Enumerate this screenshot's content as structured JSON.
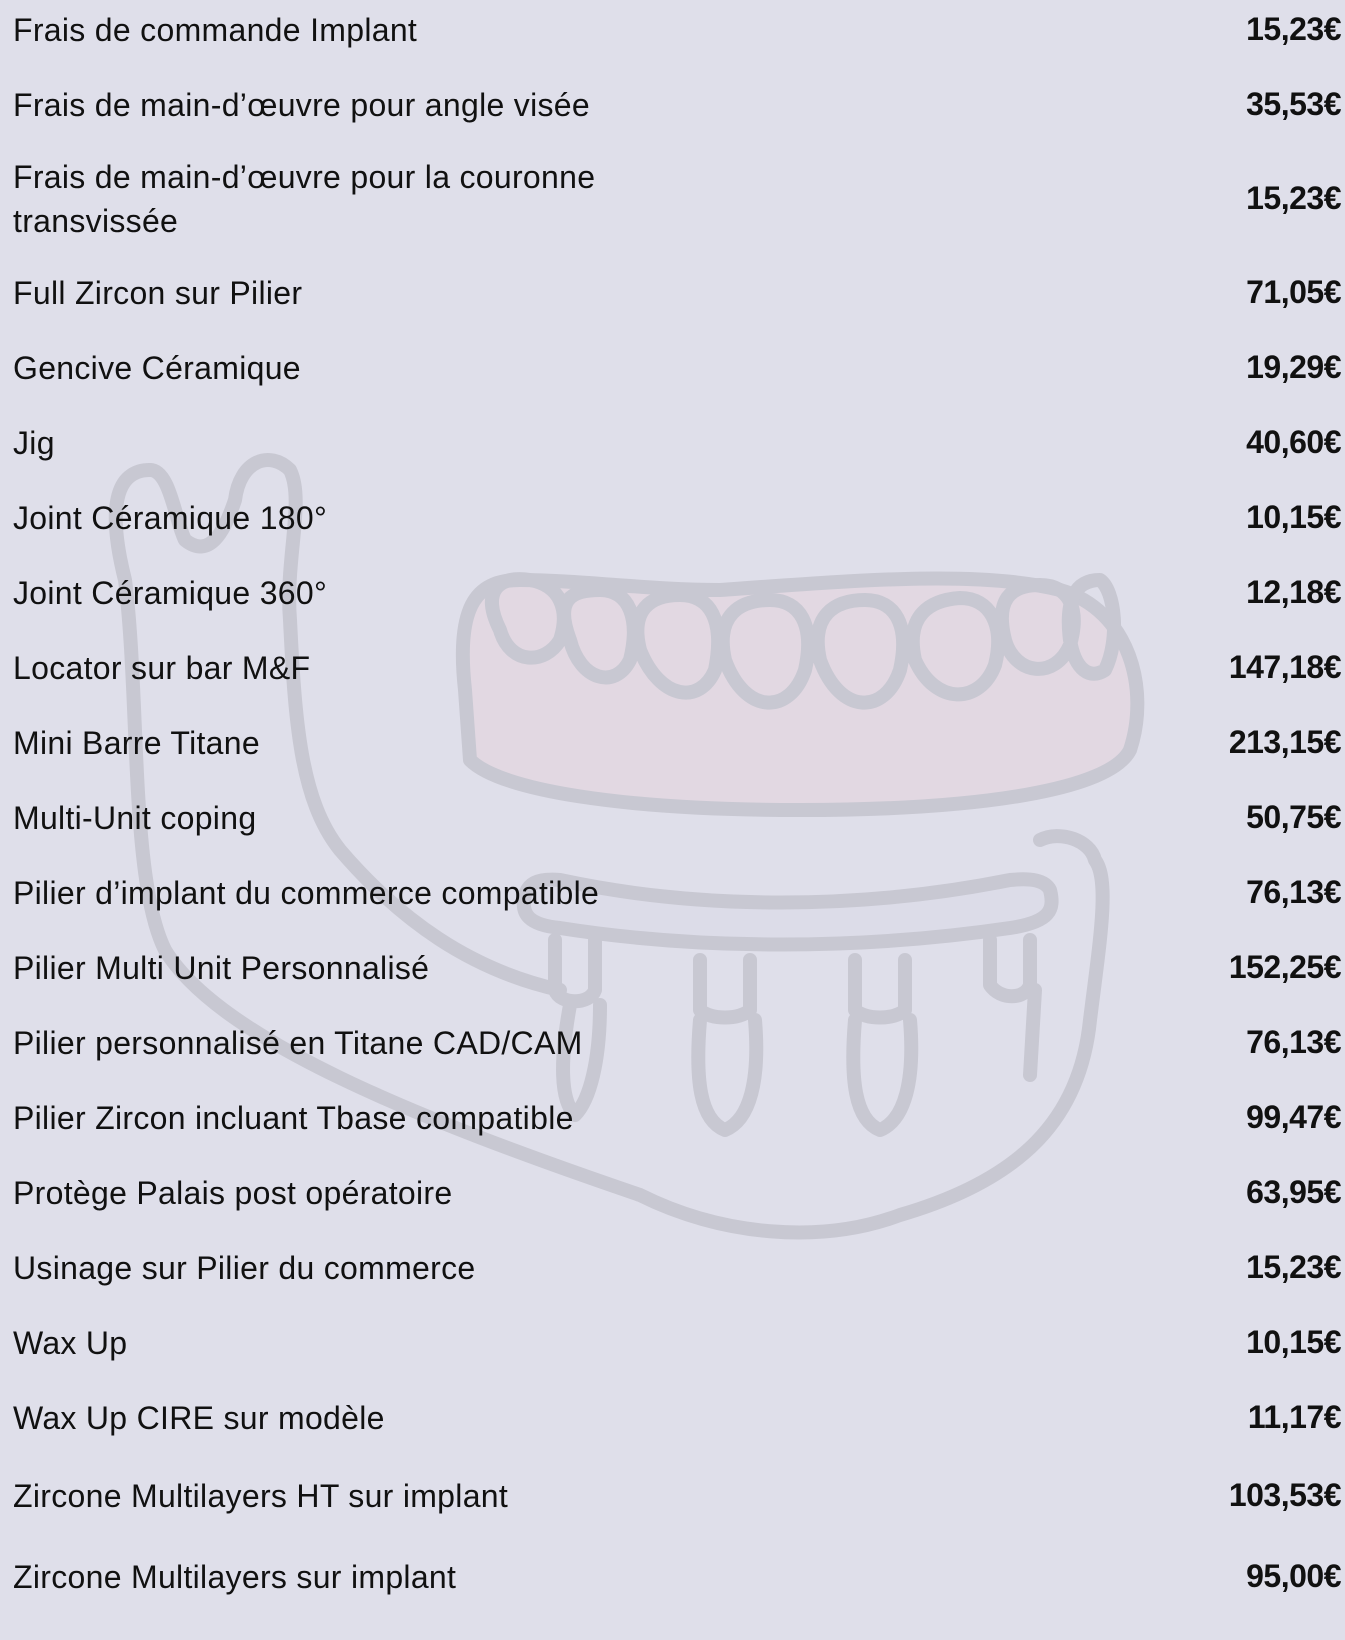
{
  "items": [
    {
      "label": "Frais de commande Implant",
      "price": "15,23€"
    },
    {
      "label": "Frais de main-d’œuvre pour angle visée",
      "price": "35,53€"
    },
    {
      "label": "Frais de main-d’œuvre pour la couronne transvissée",
      "price": "15,23€"
    },
    {
      "label": "Full Zircon sur Pilier",
      "price": "71,05€"
    },
    {
      "label": "Gencive Céramique",
      "price": "19,29€"
    },
    {
      "label": "Jig",
      "price": "40,60€"
    },
    {
      "label": "Joint Céramique 180°",
      "price": "10,15€"
    },
    {
      "label": "Joint Céramique 360°",
      "price": "12,18€"
    },
    {
      "label": "Locator sur bar M&F",
      "price": "147,18€"
    },
    {
      "label": "Mini Barre Titane",
      "price": "213,15€"
    },
    {
      "label": "Multi-Unit coping",
      "price": "50,75€"
    },
    {
      "label": "Pilier d’implant du commerce compatible",
      "price": "76,13€"
    },
    {
      "label": "Pilier Multi Unit Personnalisé",
      "price": "152,25€"
    },
    {
      "label": "Pilier personnalisé en Titane CAD/CAM",
      "price": "76,13€"
    },
    {
      "label": "Pilier Zircon incluant Tbase compatible",
      "price": "99,47€"
    },
    {
      "label": "Protège Palais post opératoire",
      "price": "63,95€"
    },
    {
      "label": "Usinage sur Pilier du commerce",
      "price": "15,23€"
    },
    {
      "label": "Wax Up",
      "price": "10,15€"
    },
    {
      "label": "Wax Up CIRE sur modèle",
      "price": "11,17€"
    },
    {
      "label": "Zircone Multilayers HT sur implant",
      "price": "103,53€"
    },
    {
      "label": "Zircone Multilayers sur implant",
      "price": "95,00€"
    }
  ]
}
